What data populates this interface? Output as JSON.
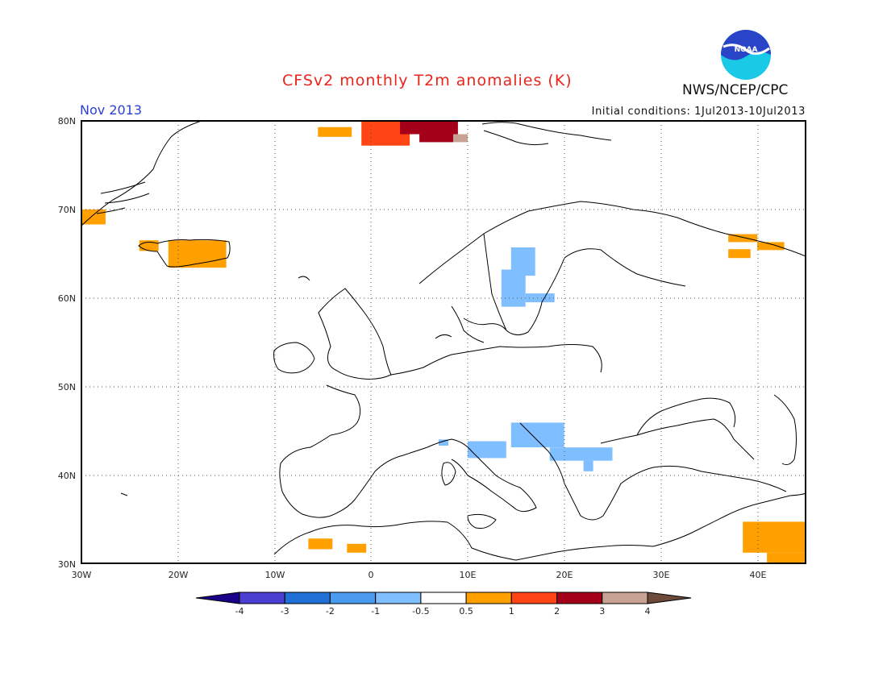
{
  "header": {
    "title": "CFSv2 monthly T2m anomalies (K)",
    "agency": "NWS/NCEP/CPC",
    "logo_text": "NOAA",
    "valid_month": "Nov 2013",
    "initial_conditions": "Initial conditions: 1Jul2013-10Jul2013"
  },
  "map": {
    "lon_range": [
      -30,
      45
    ],
    "lat_range": [
      30,
      80
    ],
    "lat_labels": [
      "30N",
      "40N",
      "50N",
      "60N",
      "70N",
      "80N"
    ],
    "lon_labels": [
      "30W",
      "20W",
      "10W",
      "0",
      "10E",
      "20E",
      "30E",
      "40E"
    ],
    "grid": true,
    "anomaly_regions": [
      {
        "name": "Greenland east coast",
        "color": "#ff9f00",
        "lon": [
          -30,
          -27.5
        ],
        "lat": [
          68.3,
          70
        ]
      },
      {
        "name": "Iceland west",
        "color": "#ff9f00",
        "lon": [
          -24,
          -22
        ],
        "lat": [
          65.3,
          66.5
        ]
      },
      {
        "name": "Iceland",
        "color": "#ff9f00",
        "lon": [
          -21,
          -15
        ],
        "lat": [
          63.4,
          66.5
        ]
      },
      {
        "name": "Svalbard west",
        "color": "#ff9f00",
        "lon": [
          -5.5,
          -2
        ],
        "lat": [
          78.2,
          79.3
        ]
      },
      {
        "name": "Svalbard",
        "color": "#ff4513",
        "lon": [
          -1,
          4
        ],
        "lat": [
          77.2,
          80
        ]
      },
      {
        "name": "Svalbard east",
        "color": "#a5001a",
        "lon": [
          3,
          9
        ],
        "lat": [
          78.5,
          80
        ]
      },
      {
        "name": "Svalbard southeast",
        "color": "#a5001a",
        "lon": [
          5,
          8.5
        ],
        "lat": [
          77.6,
          78.5
        ]
      },
      {
        "name": "Svalbard edge",
        "color": "#c8a293",
        "lon": [
          8.5,
          10
        ],
        "lat": [
          77.6,
          78.5
        ]
      },
      {
        "name": "Kola north",
        "color": "#ff9f00",
        "lon": [
          37,
          40
        ],
        "lat": [
          66.3,
          67.2
        ]
      },
      {
        "name": "Kola south",
        "color": "#ff9f00",
        "lon": [
          37,
          39.3
        ],
        "lat": [
          64.5,
          65.5
        ]
      },
      {
        "name": "White Sea",
        "color": "#ff9f00",
        "lon": [
          40,
          42.8
        ],
        "lat": [
          65.4,
          66.3
        ]
      },
      {
        "name": "Sweden",
        "color": "#7fbfff",
        "lon": [
          14.5,
          17
        ],
        "lat": [
          62.5,
          65.7
        ]
      },
      {
        "name": "Sweden south",
        "color": "#7fbfff",
        "lon": [
          13.5,
          16
        ],
        "lat": [
          59,
          63.2
        ]
      },
      {
        "name": "Sweden east",
        "color": "#7fbfff",
        "lon": [
          16,
          19
        ],
        "lat": [
          59.5,
          60.5
        ]
      },
      {
        "name": "Corsica",
        "color": "#7fbfff",
        "lon": [
          7,
          8
        ],
        "lat": [
          43.3,
          44
        ]
      },
      {
        "name": "Central Italy",
        "color": "#7fbfff",
        "lon": [
          10,
          14
        ],
        "lat": [
          41.9,
          43.8
        ]
      },
      {
        "name": "Balkans west",
        "color": "#7fbfff",
        "lon": [
          14.5,
          20
        ],
        "lat": [
          43.1,
          45.9
        ]
      },
      {
        "name": "Balkans east",
        "color": "#7fbfff",
        "lon": [
          18.5,
          25
        ],
        "lat": [
          41.6,
          43.1
        ]
      },
      {
        "name": "Macedonia",
        "color": "#7fbfff",
        "lon": [
          22,
          23
        ],
        "lat": [
          40.4,
          41.6
        ]
      },
      {
        "name": "Morocco",
        "color": "#ff9f00",
        "lon": [
          -6.5,
          -4
        ],
        "lat": [
          31.6,
          32.8
        ]
      },
      {
        "name": "Algeria",
        "color": "#ff9f00",
        "lon": [
          -2.5,
          -0.5
        ],
        "lat": [
          31.2,
          32.2
        ]
      },
      {
        "name": "Egypt",
        "color": "#ff9f00",
        "lon": [
          38.5,
          45
        ],
        "lat": [
          31.2,
          34.7
        ]
      },
      {
        "name": "Egypt south",
        "color": "#ff9f00",
        "lon": [
          41,
          45
        ],
        "lat": [
          30,
          31.2
        ]
      }
    ]
  },
  "colorbar": {
    "colors": [
      "#1a0088",
      "#4a3fd0",
      "#1f6fd6",
      "#4a9af0",
      "#7fbfff",
      "#ffffff",
      "#ff9f00",
      "#ff4513",
      "#a5001a",
      "#c8a293",
      "#6e4a3a"
    ],
    "labels": [
      "-4",
      "-3",
      "-2",
      "-1",
      "-0.5",
      "0.5",
      "1",
      "2",
      "3",
      "4"
    ]
  }
}
